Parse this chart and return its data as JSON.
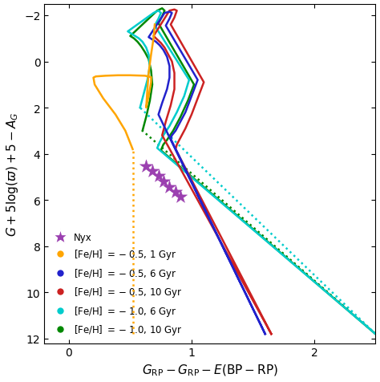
{
  "xlim": [
    -0.2,
    2.5
  ],
  "ylim": [
    12.2,
    -2.5
  ],
  "xticks": [
    0,
    1,
    2
  ],
  "yticks": [
    -2,
    0,
    2,
    4,
    6,
    8,
    10,
    12
  ],
  "xlabel": "$G_{\\mathrm{RP}} - G_{\\mathrm{RP}} - E(\\mathrm{BP} - \\mathrm{RP})$",
  "ylabel": "$G + 5\\log(\\varpi) + 5 - A_G$",
  "colors": {
    "orange": "#FFA500",
    "blue": "#2222CC",
    "red": "#CC2222",
    "cyan": "#00CCCC",
    "green": "#008800",
    "purple": "#9B40B0"
  },
  "nyx_x": [
    0.63,
    0.68,
    0.73,
    0.77,
    0.82,
    0.87,
    0.91
  ],
  "nyx_y": [
    4.55,
    4.75,
    4.95,
    5.2,
    5.45,
    5.65,
    5.85
  ]
}
